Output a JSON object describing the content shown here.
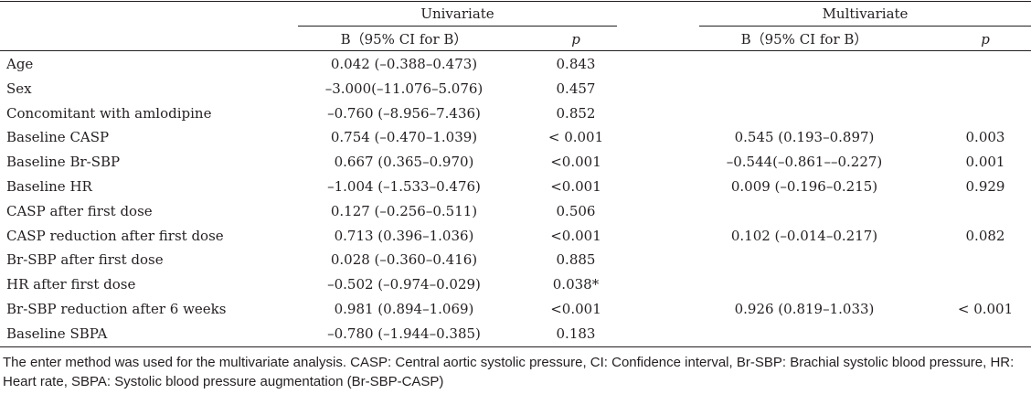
{
  "header": {
    "univariate": "Univariate",
    "multivariate": "Multivariate",
    "b_ci": "B（95% CI for B）",
    "p": "p"
  },
  "rows": [
    {
      "label": "Age",
      "uni_b": "0.042 (–0.388–0.473)",
      "uni_p": "0.843",
      "multi_b": "",
      "multi_p": ""
    },
    {
      "label": "Sex",
      "uni_b": "–3.000(–11.076–5.076)",
      "uni_p": "0.457",
      "multi_b": "",
      "multi_p": ""
    },
    {
      "label": "Concomitant with amlodipine",
      "uni_b": "–0.760 (–8.956–7.436)",
      "uni_p": "0.852",
      "multi_b": "",
      "multi_p": ""
    },
    {
      "label": "Baseline CASP",
      "uni_b": "0.754 (–0.470–1.039)",
      "uni_p": "< 0.001",
      "multi_b": "0.545 (0.193–0.897)",
      "multi_p": "0.003"
    },
    {
      "label": "Baseline Br-SBP",
      "uni_b": "0.667 (0.365–0.970)",
      "uni_p": "<0.001",
      "multi_b": "–0.544(–0.861––0.227)",
      "multi_p": "0.001"
    },
    {
      "label": "Baseline HR",
      "uni_b": "–1.004 (–1.533–0.476)",
      "uni_p": "<0.001",
      "multi_b": "0.009 (–0.196–0.215)",
      "multi_p": "0.929"
    },
    {
      "label": "CASP after first dose",
      "uni_b": "0.127 (–0.256–0.511)",
      "uni_p": "0.506",
      "multi_b": "",
      "multi_p": ""
    },
    {
      "label": "CASP reduction after first dose",
      "uni_b": "0.713 (0.396–1.036)",
      "uni_p": "<0.001",
      "multi_b": "0.102 (–0.014–0.217)",
      "multi_p": "0.082"
    },
    {
      "label": "Br-SBP after first dose",
      "uni_b": "0.028 (–0.360–0.416)",
      "uni_p": "0.885",
      "multi_b": "",
      "multi_p": ""
    },
    {
      "label": "HR after first dose",
      "uni_b": "–0.502 (–0.974–0.029)",
      "uni_p": "0.038*",
      "multi_b": "",
      "multi_p": ""
    },
    {
      "label": "Br-SBP reduction after 6 weeks",
      "uni_b": "0.981 (0.894–1.069)",
      "uni_p": "<0.001",
      "multi_b": "0.926 (0.819–1.033)",
      "multi_p": "<  0.001"
    },
    {
      "label": "Baseline SBPA",
      "uni_b": "–0.780 (–1.944–0.385)",
      "uni_p": "0.183",
      "multi_b": "",
      "multi_p": ""
    }
  ],
  "footnote": "The enter method was used for the multivariate analysis. CASP: Central aortic systolic pressure, CI: Confidence interval, Br-SBP: Brachial systolic blood pressure, HR: Heart rate, SBPA: Systolic blood pressure augmentation (Br-SBP-CASP)"
}
